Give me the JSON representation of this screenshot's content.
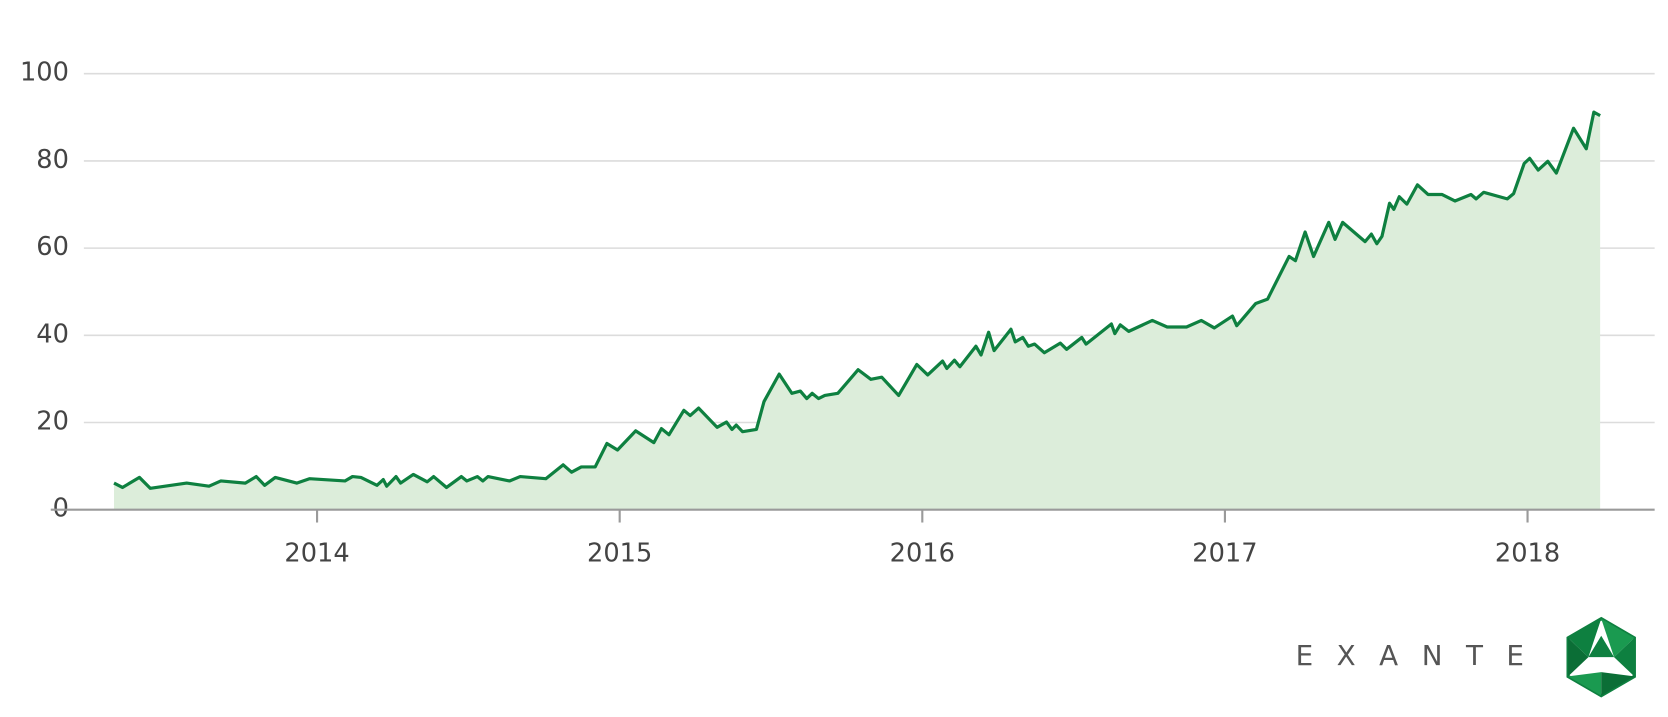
{
  "chart_data": {
    "type": "area",
    "x": [
      2013.329,
      2013.357,
      2013.413,
      2013.449,
      2013.569,
      2013.643,
      2013.682,
      2013.763,
      2013.799,
      2013.827,
      2013.862,
      2013.933,
      2013.975,
      2014.092,
      2014.117,
      2014.145,
      2014.198,
      2014.219,
      2014.23,
      2014.261,
      2014.276,
      2014.318,
      2014.364,
      2014.385,
      2014.428,
      2014.477,
      2014.495,
      2014.53,
      2014.548,
      2014.565,
      2014.636,
      2014.671,
      2014.756,
      2014.813,
      2014.841,
      2014.873,
      2014.919,
      2014.958,
      2014.993,
      2015.053,
      2015.113,
      2015.138,
      2015.163,
      2015.212,
      2015.233,
      2015.261,
      2015.322,
      2015.353,
      2015.371,
      2015.385,
      2015.406,
      2015.452,
      2015.477,
      2015.527,
      2015.569,
      2015.597,
      2015.618,
      2015.636,
      2015.657,
      2015.678,
      2015.721,
      2015.788,
      2015.83,
      2015.866,
      2015.922,
      2015.982,
      2016.018,
      2016.067,
      2016.081,
      2016.106,
      2016.124,
      2016.177,
      2016.194,
      2016.219,
      2016.237,
      2016.293,
      2016.307,
      2016.332,
      2016.35,
      2016.371,
      2016.403,
      2016.456,
      2016.477,
      2016.527,
      2016.541,
      2016.625,
      2016.636,
      2016.654,
      2016.682,
      2016.76,
      2016.809,
      2016.873,
      2016.922,
      2016.965,
      2017.025,
      2017.039,
      2017.102,
      2017.141,
      2017.212,
      2017.233,
      2017.265,
      2017.293,
      2017.343,
      2017.364,
      2017.389,
      2017.463,
      2017.484,
      2017.502,
      2017.519,
      2017.544,
      2017.558,
      2017.576,
      2017.601,
      2017.636,
      2017.671,
      2017.717,
      2017.76,
      2017.813,
      2017.83,
      2017.855,
      2017.933,
      2017.954,
      2017.989,
      2018.007,
      2018.035,
      2018.067,
      2018.095,
      2018.152,
      2018.194,
      2018.219,
      2018.24
    ],
    "values": [
      6.1,
      5.1,
      7.4,
      4.9,
      6.1,
      5.4,
      6.6,
      6.1,
      7.6,
      5.6,
      7.4,
      6.1,
      7.1,
      6.6,
      7.6,
      7.4,
      5.6,
      6.9,
      5.4,
      7.6,
      6.1,
      8.1,
      6.4,
      7.6,
      5.1,
      7.6,
      6.6,
      7.6,
      6.6,
      7.6,
      6.6,
      7.6,
      7.1,
      10.3,
      8.6,
      9.8,
      9.8,
      15.2,
      13.7,
      18.1,
      15.4,
      18.6,
      17.2,
      22.8,
      21.6,
      23.3,
      18.9,
      20.1,
      18.4,
      19.4,
      17.9,
      18.4,
      24.8,
      31.1,
      26.7,
      27.2,
      25.5,
      26.7,
      25.5,
      26.2,
      26.7,
      32.1,
      29.9,
      30.4,
      26.2,
      33.3,
      30.9,
      34.1,
      32.4,
      34.3,
      32.8,
      37.5,
      35.5,
      40.7,
      36.5,
      41.4,
      38.5,
      39.5,
      37.5,
      38.0,
      36.0,
      38.2,
      36.8,
      39.5,
      38.0,
      42.6,
      40.4,
      42.4,
      40.9,
      43.4,
      41.9,
      41.9,
      43.4,
      41.7,
      44.4,
      42.2,
      47.3,
      48.3,
      58.1,
      57.1,
      63.7,
      58.1,
      65.9,
      62.0,
      65.9,
      61.5,
      63.2,
      61.0,
      62.7,
      70.3,
      68.9,
      71.8,
      70.1,
      74.5,
      72.3,
      72.3,
      70.8,
      72.3,
      71.3,
      72.8,
      71.3,
      72.5,
      79.4,
      80.6,
      77.9,
      79.9,
      77.2,
      87.5,
      82.8,
      91.2,
      90.4
    ],
    "color": "#0e8040",
    "fill": "#dcedda",
    "xlim": [
      2013.12,
      2018.42
    ],
    "xticks": [
      2014,
      2015,
      2016,
      2017,
      2018
    ],
    "ylim": [
      0,
      100
    ],
    "yticks": [
      0,
      20,
      40,
      60,
      80,
      100
    ],
    "grid": true
  },
  "logo": {
    "text": "EXANTE"
  }
}
